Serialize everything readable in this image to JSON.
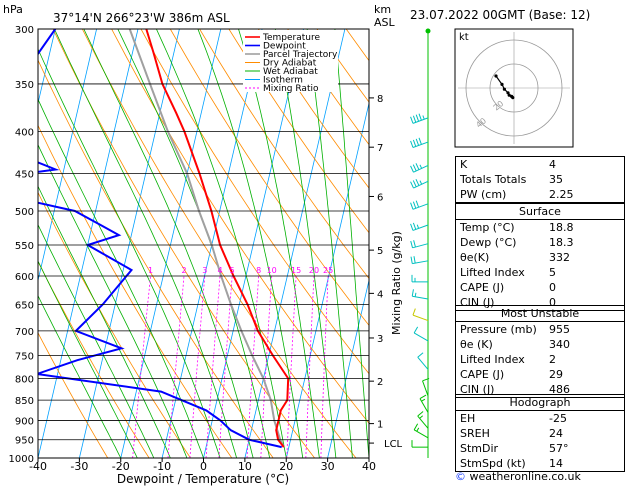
{
  "header": {
    "hpa_label": "hPa",
    "location": "37°14'N 266°23'W 386m ASL",
    "km_label": "km",
    "asl_label": "ASL",
    "datetime": "23.07.2022 00GMT (Base: 12)"
  },
  "colors": {
    "temperature": "#ff0000",
    "dewpoint": "#0000ff",
    "parcel": "#a0a0a0",
    "dry_adiabat": "#ff8c00",
    "wet_adiabat": "#00b000",
    "isotherm": "#00a0ff",
    "mixing_ratio": "#ff00ff",
    "wind": "#00c0c0",
    "wind_low": "#00c000",
    "wind_mid": "#c8c800"
  },
  "chart_data": {
    "type": "line",
    "xlabel": "Dewpoint / Temperature (°C)",
    "ylabel": "",
    "right_ylabel": "Mixing Ratio (g/kg)",
    "x_ticks": [
      -40,
      -30,
      -20,
      -10,
      0,
      10,
      20,
      30,
      40
    ],
    "pressure_levels": [
      300,
      350,
      400,
      450,
      500,
      550,
      600,
      650,
      700,
      750,
      800,
      850,
      900,
      950,
      1000
    ],
    "km_ticks": [
      {
        "label": "8",
        "p": 364
      },
      {
        "label": "7",
        "p": 418
      },
      {
        "label": "6",
        "p": 480
      },
      {
        "label": "5",
        "p": 558
      },
      {
        "label": "4",
        "p": 630
      },
      {
        "label": "3",
        "p": 714
      },
      {
        "label": "2",
        "p": 806
      },
      {
        "label": "1",
        "p": 908
      },
      {
        "label": "LCL",
        "p": 959
      }
    ],
    "mixing_ratio_labels": [
      "1",
      "2",
      "3",
      "4",
      "5",
      "8",
      "10",
      "15",
      "20",
      "25"
    ],
    "mixing_ratio_values": [
      1,
      2,
      3,
      4,
      5,
      8,
      10,
      15,
      20,
      25
    ],
    "legend": [
      "Temperature",
      "Dewpoint",
      "Parcel Trajectory",
      "Dry Adiabat",
      "Wet Adiabat",
      "Isotherm",
      "Mixing Ratio"
    ],
    "series": [
      {
        "name": "Temperature",
        "points": [
          [
            300,
            -38
          ],
          [
            320,
            -35
          ],
          [
            350,
            -31
          ],
          [
            380,
            -26
          ],
          [
            400,
            -23
          ],
          [
            450,
            -17
          ],
          [
            500,
            -12
          ],
          [
            550,
            -8
          ],
          [
            600,
            -3
          ],
          [
            650,
            2
          ],
          [
            700,
            6
          ],
          [
            750,
            11
          ],
          [
            800,
            16
          ],
          [
            850,
            17
          ],
          [
            875,
            16
          ],
          [
            900,
            16
          ],
          [
            925,
            16
          ],
          [
            950,
            17
          ],
          [
            970,
            18.8
          ]
        ]
      },
      {
        "name": "Dewpoint",
        "points": [
          [
            300,
            -60
          ],
          [
            340,
            -65
          ],
          [
            370,
            -70
          ],
          [
            400,
            -67
          ],
          [
            430,
            -60
          ],
          [
            445,
            -52
          ],
          [
            455,
            -66
          ],
          [
            470,
            -70
          ],
          [
            500,
            -45
          ],
          [
            520,
            -38
          ],
          [
            535,
            -33
          ],
          [
            550,
            -40
          ],
          [
            590,
            -28
          ],
          [
            650,
            -33
          ],
          [
            700,
            -38
          ],
          [
            735,
            -26
          ],
          [
            760,
            -36
          ],
          [
            790,
            -45
          ],
          [
            830,
            -14
          ],
          [
            875,
            -2
          ],
          [
            900,
            2
          ],
          [
            925,
            5
          ],
          [
            950,
            10
          ],
          [
            970,
            18.3
          ]
        ]
      },
      {
        "name": "Parcel Trajectory",
        "points": [
          [
            300,
            -42
          ],
          [
            350,
            -34
          ],
          [
            400,
            -27
          ],
          [
            450,
            -20
          ],
          [
            500,
            -15
          ],
          [
            550,
            -10
          ],
          [
            600,
            -6
          ],
          [
            650,
            -2
          ],
          [
            700,
            2
          ],
          [
            750,
            6
          ],
          [
            800,
            10
          ],
          [
            850,
            13
          ],
          [
            900,
            15
          ],
          [
            950,
            17.5
          ],
          [
            970,
            18.8
          ]
        ]
      }
    ],
    "winds": [
      {
        "p": 385,
        "dir": 250,
        "spd": 45
      },
      {
        "p": 412,
        "dir": 250,
        "spd": 40
      },
      {
        "p": 440,
        "dir": 245,
        "spd": 35
      },
      {
        "p": 460,
        "dir": 245,
        "spd": 35
      },
      {
        "p": 490,
        "dir": 250,
        "spd": 30
      },
      {
        "p": 520,
        "dir": 250,
        "spd": 25
      },
      {
        "p": 548,
        "dir": 255,
        "spd": 20
      },
      {
        "p": 575,
        "dir": 260,
        "spd": 20
      },
      {
        "p": 610,
        "dir": 270,
        "spd": 15
      },
      {
        "p": 640,
        "dir": 280,
        "spd": 15
      },
      {
        "p": 680,
        "dir": 290,
        "spd": 10
      },
      {
        "p": 720,
        "dir": 300,
        "spd": 10
      },
      {
        "p": 780,
        "dir": 320,
        "spd": 10
      },
      {
        "p": 840,
        "dir": 340,
        "spd": 10
      },
      {
        "p": 880,
        "dir": 330,
        "spd": 15
      },
      {
        "p": 920,
        "dir": 320,
        "spd": 15
      },
      {
        "p": 945,
        "dir": 300,
        "spd": 15
      },
      {
        "p": 970,
        "dir": 270,
        "spd": 10
      }
    ],
    "surface_wind_marker": {
      "p": 300
    }
  },
  "hodograph": {
    "label": "kt",
    "ring_labels": [
      "20",
      "40"
    ],
    "points": [
      [
        -1,
        -8
      ],
      [
        -2,
        -7
      ],
      [
        -4,
        -6
      ],
      [
        -5,
        -4
      ],
      [
        -8,
        -1
      ],
      [
        -10,
        3
      ],
      [
        -15,
        10
      ]
    ]
  },
  "indices": {
    "rows": [
      {
        "label": "K",
        "value": "4"
      },
      {
        "label": "Totals Totals",
        "value": "35"
      },
      {
        "label": "PW (cm)",
        "value": "2.25"
      }
    ]
  },
  "surface": {
    "title": "Surface",
    "rows": [
      {
        "label": "Temp (°C)",
        "value": "18.8"
      },
      {
        "label": "Dewp (°C)",
        "value": "18.3"
      },
      {
        "label": "θe(K)",
        "value": "332"
      },
      {
        "label": "Lifted Index",
        "value": "5"
      },
      {
        "label": "CAPE (J)",
        "value": "0"
      },
      {
        "label": "CIN (J)",
        "value": "0"
      }
    ]
  },
  "most_unstable": {
    "title": "Most Unstable",
    "rows": [
      {
        "label": "Pressure (mb)",
        "value": "955"
      },
      {
        "label": "θe (K)",
        "value": "340"
      },
      {
        "label": "Lifted Index",
        "value": "2"
      },
      {
        "label": "CAPE (J)",
        "value": "29"
      },
      {
        "label": "CIN (J)",
        "value": "486"
      }
    ]
  },
  "hodograph_stats": {
    "title": "Hodograph",
    "rows": [
      {
        "label": "EH",
        "value": "-25"
      },
      {
        "label": "SREH",
        "value": "24"
      },
      {
        "label": "StmDir",
        "value": "57°"
      },
      {
        "label": "StmSpd (kt)",
        "value": "14"
      }
    ]
  },
  "footer": {
    "copyright": "©",
    "site": "weatheronline.co.uk"
  }
}
